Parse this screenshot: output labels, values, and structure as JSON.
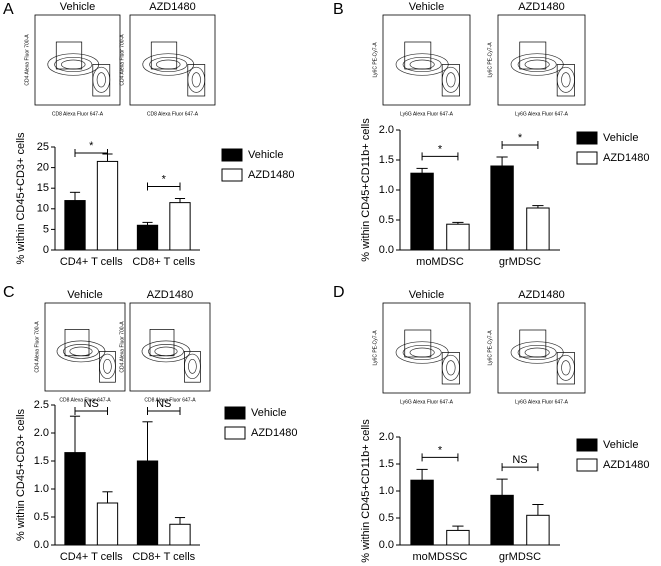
{
  "chart_data": [
    {
      "panel": "A",
      "type": "bar",
      "plots": [
        {
          "title": "Vehicle",
          "xlabel": "CD8 Alexa Fluor 647-A",
          "ylabel": "CD4 Alexa Fluor 700-A"
        },
        {
          "title": "AZD1480",
          "xlabel": "CD8 Alexa Fluor 647-A",
          "ylabel": "CD4 Alexa Fluor 700-A"
        }
      ],
      "ylabel": "% within CD45+CD3+ cells",
      "categories": [
        "CD4+ T cells",
        "CD8+ T cells"
      ],
      "series": [
        {
          "name": "Vehicle",
          "color": "#000000",
          "values": [
            12,
            6
          ],
          "errors": [
            2,
            0.7
          ]
        },
        {
          "name": "AZD1480",
          "color": "#ffffff",
          "values": [
            21.5,
            11.5
          ],
          "errors": [
            1.8,
            1
          ]
        }
      ],
      "significance": [
        "*",
        "*"
      ],
      "ylim": [
        0,
        25
      ],
      "yticks": [
        0,
        5,
        10,
        15,
        20,
        25
      ]
    },
    {
      "panel": "B",
      "type": "bar",
      "plots": [
        {
          "title": "Vehicle",
          "xlabel": "Ly6G Alexa Fluor 647-A",
          "ylabel": "Ly6C PE-Cy7-A"
        },
        {
          "title": "AZD1480",
          "xlabel": "Ly6G Alexa Fluor 647-A",
          "ylabel": "Ly6C PE-Cy7-A"
        }
      ],
      "ylabel": "% within CD45+CD11b+ cells",
      "categories": [
        "moMDSC",
        "grMDSC"
      ],
      "series": [
        {
          "name": "Vehicle",
          "color": "#000000",
          "values": [
            1.28,
            1.4
          ],
          "errors": [
            0.08,
            0.15
          ]
        },
        {
          "name": "AZD1480",
          "color": "#ffffff",
          "values": [
            0.43,
            0.7
          ],
          "errors": [
            0.03,
            0.04
          ]
        }
      ],
      "significance": [
        "*",
        "*"
      ],
      "ylim": [
        0,
        2
      ],
      "yticks": [
        {
          "value": 0,
          "label": "0.0"
        },
        0.5,
        {
          "value": 1,
          "label": "1.0"
        },
        1.5,
        {
          "value": 2,
          "label": "2.0"
        }
      ]
    },
    {
      "panel": "C",
      "type": "bar",
      "plots": [
        {
          "title": "Vehicle",
          "xlabel": "CD8 Alexa Fluor 647-A",
          "ylabel": "CD4 Alexa Fluor 700-A"
        },
        {
          "title": "AZD1480",
          "xlabel": "CD8 Alexa Fluor 647-A",
          "ylabel": "CD4 Alexa Fluor 700-A"
        }
      ],
      "ylabel": "% within CD45+CD3+ cells",
      "categories": [
        "CD4+ T cells",
        "CD8+ T cells"
      ],
      "series": [
        {
          "name": "Vehicle",
          "color": "#000000",
          "values": [
            1.65,
            1.5
          ],
          "errors": [
            0.65,
            0.7
          ]
        },
        {
          "name": "AZD1480",
          "color": "#ffffff",
          "values": [
            0.75,
            0.37
          ],
          "errors": [
            0.2,
            0.12
          ]
        }
      ],
      "significance": [
        "NS",
        "NS"
      ],
      "ylim": [
        0,
        2.5
      ],
      "yticks": [
        {
          "value": 0,
          "label": "0.0"
        },
        0.5,
        {
          "value": 1,
          "label": "1.0"
        },
        1.5,
        {
          "value": 2,
          "label": "2.0"
        },
        2.5
      ]
    },
    {
      "panel": "D",
      "type": "bar",
      "plots": [
        {
          "title": "Vehicle",
          "xlabel": "Ly6G Alexa Fluor 647-A",
          "ylabel": "Ly6C PE-Cy7-A"
        },
        {
          "title": "AZD1480",
          "xlabel": "Ly6G Alexa Fluor 647-A",
          "ylabel": "Ly6C PE-Cy7-A"
        }
      ],
      "ylabel": "% within CD45+CD11b+ cells",
      "categories": [
        "moMDSSC",
        "grMDSC"
      ],
      "series": [
        {
          "name": "Vehicle",
          "color": "#000000",
          "values": [
            1.2,
            0.92
          ],
          "errors": [
            0.2,
            0.3
          ]
        },
        {
          "name": "AZD1480",
          "color": "#ffffff",
          "values": [
            0.27,
            0.55
          ],
          "errors": [
            0.08,
            0.2
          ]
        }
      ],
      "significance": [
        "*",
        "NS"
      ],
      "ylim": [
        0,
        2
      ],
      "yticks": [
        {
          "value": 0,
          "label": "0.0"
        },
        0.5,
        {
          "value": 1,
          "label": "1.0"
        },
        1.5,
        {
          "value": 2,
          "label": "2.0"
        }
      ]
    }
  ]
}
